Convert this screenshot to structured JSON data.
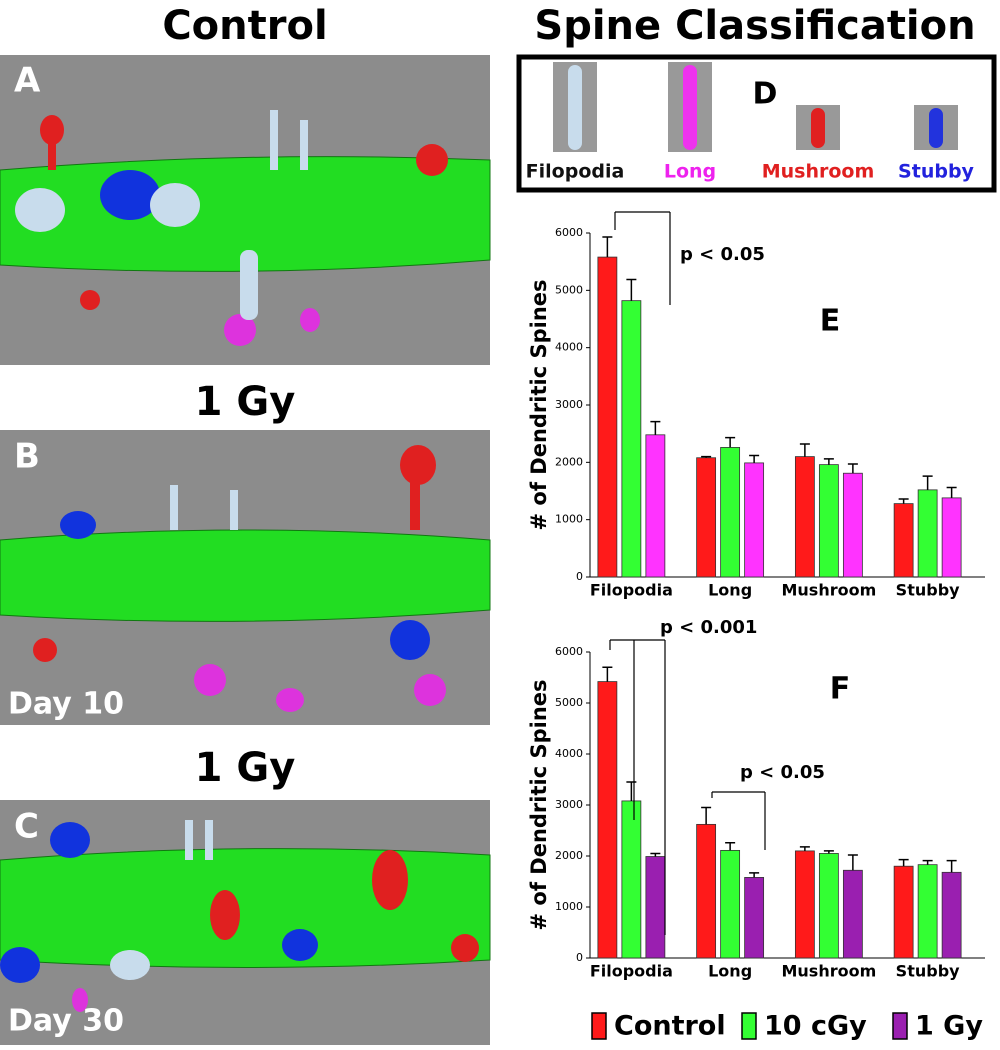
{
  "panels": {
    "control_title": "Control",
    "panel_a": "A",
    "gy_title_b": "1 Gy",
    "panel_b": "B",
    "day_b": "Day 10",
    "gy_title_c": "1 Gy",
    "panel_c": "C",
    "day_c": "Day 30"
  },
  "classification": {
    "title": "Spine Classification",
    "panel": "D",
    "types": [
      {
        "label": "Filopodia",
        "color": "#111111"
      },
      {
        "label": "Long",
        "color": "#ee22ee"
      },
      {
        "label": "Mushroom",
        "color": "#e02020"
      },
      {
        "label": "Stubby",
        "color": "#2222dd"
      }
    ]
  },
  "chart_data": [
    {
      "type": "bar",
      "panel_label": "E",
      "y_label": "# of Dendritic Spines",
      "categories": [
        "Filopodia",
        "Long",
        "Mushroom",
        "Stubby"
      ],
      "ylim": [
        0,
        6000
      ],
      "yticks": [
        0,
        1000,
        2000,
        3000,
        4000,
        5000,
        6000
      ],
      "series": [
        {
          "color": "#ff1a1a",
          "values": [
            5580,
            2080,
            2100,
            1280
          ],
          "errors": [
            350,
            20,
            220,
            80
          ]
        },
        {
          "color": "#33ff33",
          "values": [
            4820,
            2260,
            1960,
            1520
          ],
          "errors": [
            370,
            170,
            100,
            240
          ]
        },
        {
          "color": "#ff33ff",
          "values": [
            2480,
            1990,
            1810,
            1380
          ],
          "errors": [
            230,
            130,
            160,
            180
          ]
        }
      ],
      "annotations": [
        "p < 0.05"
      ]
    },
    {
      "type": "bar",
      "panel_label": "F",
      "y_label": "# of  Dendritic  Spines",
      "categories": [
        "Filopodia",
        "Long",
        "Mushroom",
        "Stubby"
      ],
      "ylim": [
        0,
        6000
      ],
      "yticks": [
        0,
        1000,
        2000,
        3000,
        4000,
        5000,
        6000
      ],
      "legend": "bottom",
      "series": [
        {
          "name": "Control",
          "color": "#ff1a1a",
          "values": [
            5420,
            2620,
            2100,
            1800
          ],
          "errors": [
            280,
            330,
            80,
            130
          ]
        },
        {
          "name": "10 cGy",
          "color": "#33ff33",
          "values": [
            3080,
            2110,
            2050,
            1830
          ],
          "errors": [
            370,
            150,
            50,
            80
          ]
        },
        {
          "name": "1 Gy",
          "color": "#9a1fb0",
          "values": [
            1990,
            1580,
            1720,
            1680
          ],
          "errors": [
            60,
            90,
            300,
            230
          ]
        }
      ],
      "annotations": [
        "p < 0.001",
        "p < 0.05"
      ]
    }
  ]
}
